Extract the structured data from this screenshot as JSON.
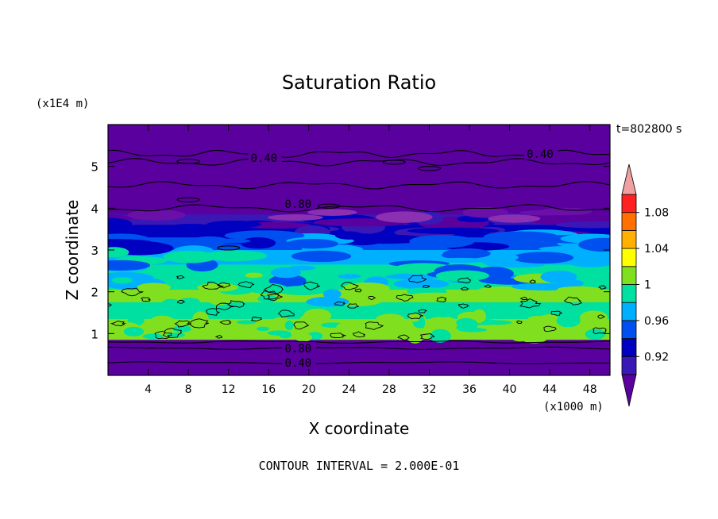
{
  "chart_data": {
    "type": "heatmap",
    "title": "Saturation Ratio",
    "xlabel": "X coordinate",
    "ylabel": "Z coordinate",
    "x_unit": "(x1000 m)",
    "y_unit": "(x1E4 m)",
    "time_label": "t=802800 s",
    "footer": "CONTOUR INTERVAL = 2.000E-01",
    "xlim": [
      0,
      50
    ],
    "ylim": [
      0,
      6
    ],
    "x_ticks": [
      "4",
      "8",
      "12",
      "16",
      "20",
      "24",
      "28",
      "32",
      "36",
      "40",
      "44",
      "48"
    ],
    "y_ticks": [
      "1",
      "2",
      "3",
      "4",
      "5"
    ],
    "colorbar": {
      "levels": [
        0.9,
        0.92,
        0.94,
        0.96,
        0.98,
        1.0,
        1.02,
        1.04,
        1.06,
        1.08,
        1.1
      ],
      "tick_labels": [
        "0.92",
        "0.96",
        "1",
        "1.04",
        "1.08"
      ],
      "colors": [
        "#5a009e",
        "#3a18b6",
        "#0000c0",
        "#0050f0",
        "#00b0ff",
        "#00e0a0",
        "#80e020",
        "#ffff00",
        "#ffb000",
        "#ff7000",
        "#ff2020",
        "#f0a0a0"
      ]
    },
    "contour_labels": [
      {
        "text": "0.40",
        "x": 14.2,
        "z": 5.2
      },
      {
        "text": "0.40",
        "x": 41.7,
        "z": 5.3
      },
      {
        "text": "0.80",
        "x": 17.6,
        "z": 4.1
      },
      {
        "text": "0.80",
        "x": 17.6,
        "z": 0.65
      },
      {
        "text": "0.40",
        "x": 17.6,
        "z": 0.3
      }
    ],
    "bands": [
      {
        "z0": 0.0,
        "z1": 0.85,
        "color": "#5a009e"
      },
      {
        "z0": 0.85,
        "z1": 1.35,
        "color": "#80e020"
      },
      {
        "z0": 1.35,
        "z1": 1.75,
        "color": "#00e0a0"
      },
      {
        "z0": 1.75,
        "z1": 2.05,
        "color": "#80e020"
      },
      {
        "z0": 2.05,
        "z1": 2.65,
        "color": "#00e0a0"
      },
      {
        "z0": 2.65,
        "z1": 3.0,
        "color": "#00b0ff"
      },
      {
        "z0": 3.0,
        "z1": 3.3,
        "color": "#0050f0"
      },
      {
        "z0": 3.3,
        "z1": 3.6,
        "color": "#0000c0"
      },
      {
        "z0": 3.6,
        "z1": 3.85,
        "color": "#3a18b6"
      },
      {
        "z0": 3.85,
        "z1": 6.0,
        "color": "#5a009e"
      }
    ],
    "contours_z": [
      0.3,
      0.65,
      0.8,
      4.0,
      4.55,
      5.1,
      5.3
    ]
  }
}
